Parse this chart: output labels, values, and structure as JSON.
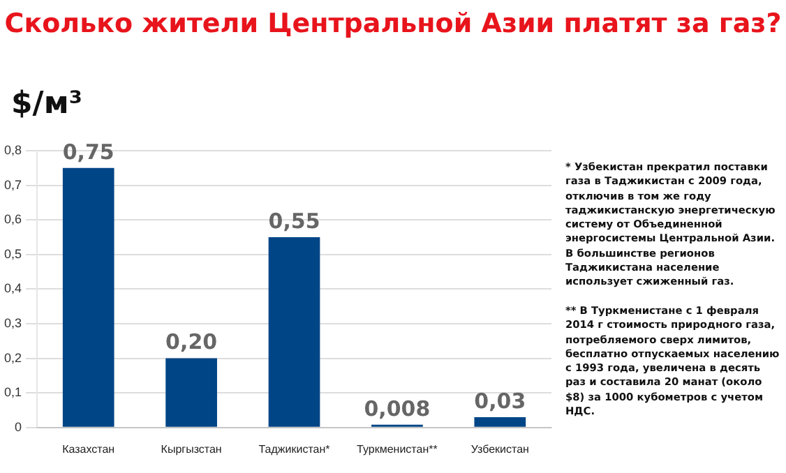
{
  "chart_data": {
    "type": "bar",
    "title": "Сколько жители Центральной Азии платят за газ?",
    "ylabel": "$/м³",
    "categories": [
      "Казахстан",
      "Кыргызстан",
      "Таджикистан*",
      "Туркменистан**",
      "Узбекистан"
    ],
    "values": [
      0.75,
      0.2,
      0.55,
      0.008,
      0.03
    ],
    "color": "#004586",
    "value_labels": [
      "0,75",
      "0,20",
      "0,55",
      "0,008",
      "0,03"
    ],
    "ylim": [
      0,
      0.8
    ],
    "yticks": [
      0,
      {
        "value": 0.1,
        "label": "0,1"
      },
      {
        "value": 0.2,
        "label": "0,2"
      },
      {
        "value": 0.3,
        "label": "0,3"
      },
      {
        "value": 0.4,
        "label": "0,4"
      },
      {
        "value": 0.5,
        "label": "0,5"
      },
      {
        "value": 0.6,
        "label": "0,6"
      },
      {
        "value": 0.7,
        "label": "0,7"
      },
      {
        "value": 0.8,
        "label": "0,8"
      }
    ],
    "grid": "y",
    "legend": false,
    "annotations": [
      "* Узбекистан прекратил поставки газа в Таджикистан с 2009 года, отключив в том же году таджикистанскую энергетическую систему от Объединенной энергосистемы Центральной Азии. В большинстве регионов Таджикистана население использует сжиженный газ.",
      "** В Туркменистане с 1 февраля 2014 г стоимость природного газа, потребляемого сверх лимитов, бесплатно отпускаемых населению с 1993 года, увеличена в десять раз и составила 20 манат (около $8) за 1000 кубометров с учетом НДС."
    ]
  }
}
